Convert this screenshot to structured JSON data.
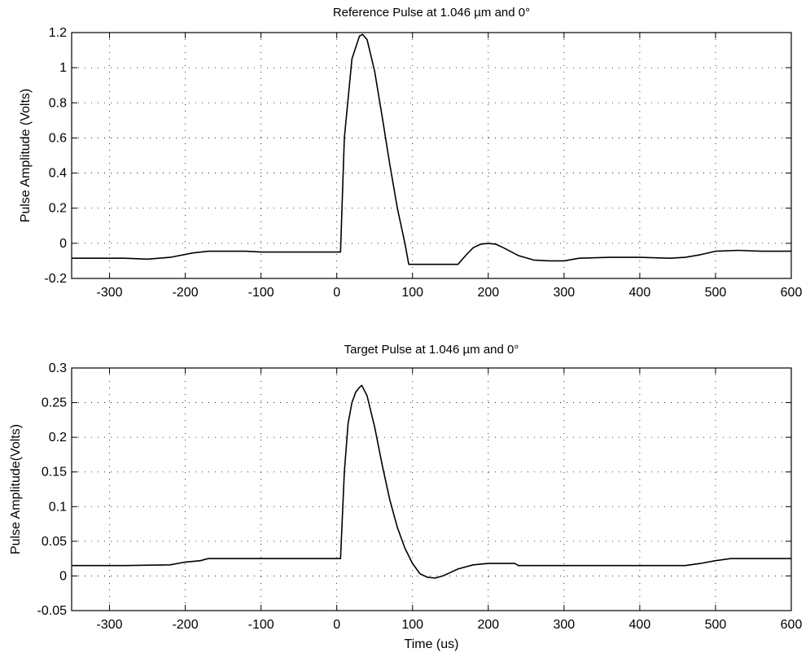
{
  "chart_data": [
    {
      "type": "line",
      "title": "Reference Pulse at 1.046 µm and 0°",
      "xlabel": "",
      "ylabel": "Pulse Amplitude (Volts)",
      "xlim": [
        -350,
        600
      ],
      "ylim": [
        -0.2,
        1.2
      ],
      "xticks": [
        -300,
        -200,
        -100,
        0,
        100,
        200,
        300,
        400,
        500,
        600
      ],
      "xtick_labels": [
        "-300",
        "-200",
        "-100",
        "0",
        "100",
        "200",
        "300",
        "400",
        "500",
        "600"
      ],
      "yticks": [
        -0.2,
        0,
        0.2,
        0.4,
        0.6,
        0.8,
        1,
        1.2
      ],
      "ytick_labels": [
        "-0.2",
        "0",
        "0.2",
        "0.4",
        "0.6",
        "0.8",
        "1",
        "1.2"
      ],
      "grid": true,
      "series": [
        {
          "x": [
            -350,
            -280,
            -250,
            -220,
            -190,
            -170,
            -150,
            -120,
            -100,
            0,
            5,
            10,
            20,
            30,
            34,
            40,
            50,
            60,
            70,
            80,
            90,
            95,
            100,
            160,
            170,
            180,
            190,
            200,
            210,
            220,
            240,
            260,
            280,
            300,
            320,
            360,
            400,
            440,
            460,
            480,
            500,
            530,
            560,
            600
          ],
          "y": [
            -0.085,
            -0.085,
            -0.09,
            -0.08,
            -0.055,
            -0.045,
            -0.045,
            -0.045,
            -0.05,
            -0.05,
            -0.05,
            0.6,
            1.05,
            1.18,
            1.19,
            1.16,
            0.98,
            0.72,
            0.45,
            0.2,
            0.0,
            -0.12,
            -0.12,
            -0.12,
            -0.07,
            -0.025,
            -0.005,
            0.0,
            -0.005,
            -0.025,
            -0.07,
            -0.095,
            -0.1,
            -0.1,
            -0.085,
            -0.08,
            -0.08,
            -0.085,
            -0.08,
            -0.065,
            -0.045,
            -0.04,
            -0.045,
            -0.045
          ]
        }
      ]
    },
    {
      "type": "line",
      "title": "Target Pulse at 1.046 µm and 0°",
      "xlabel": "Time (us)",
      "ylabel": "Pulse Amplitude(Volts)",
      "xlim": [
        -350,
        600
      ],
      "ylim": [
        -0.05,
        0.3
      ],
      "xticks": [
        -300,
        -200,
        -100,
        0,
        100,
        200,
        300,
        400,
        500,
        600
      ],
      "xtick_labels": [
        "-300",
        "-200",
        "-100",
        "0",
        "100",
        "200",
        "300",
        "400",
        "500",
        "600"
      ],
      "yticks": [
        -0.05,
        0,
        0.05,
        0.1,
        0.15,
        0.2,
        0.25,
        0.3
      ],
      "ytick_labels": [
        "-0.05",
        "0",
        "0.05",
        "0.1",
        "0.15",
        "0.2",
        "0.25",
        "0.3"
      ],
      "grid": true,
      "series": [
        {
          "x": [
            -350,
            -280,
            -220,
            -200,
            -180,
            -170,
            -100,
            0,
            5,
            10,
            15,
            20,
            25,
            30,
            33,
            40,
            50,
            60,
            70,
            80,
            90,
            100,
            110,
            120,
            130,
            140,
            150,
            160,
            180,
            200,
            235,
            240,
            300,
            400,
            460,
            480,
            500,
            520,
            600
          ],
          "y": [
            0.015,
            0.015,
            0.016,
            0.02,
            0.022,
            0.025,
            0.025,
            0.025,
            0.025,
            0.15,
            0.22,
            0.25,
            0.265,
            0.272,
            0.275,
            0.26,
            0.215,
            0.16,
            0.11,
            0.07,
            0.04,
            0.018,
            0.003,
            -0.002,
            -0.003,
            0.0,
            0.005,
            0.01,
            0.016,
            0.018,
            0.018,
            0.015,
            0.015,
            0.015,
            0.015,
            0.018,
            0.022,
            0.025,
            0.025
          ]
        }
      ]
    }
  ]
}
